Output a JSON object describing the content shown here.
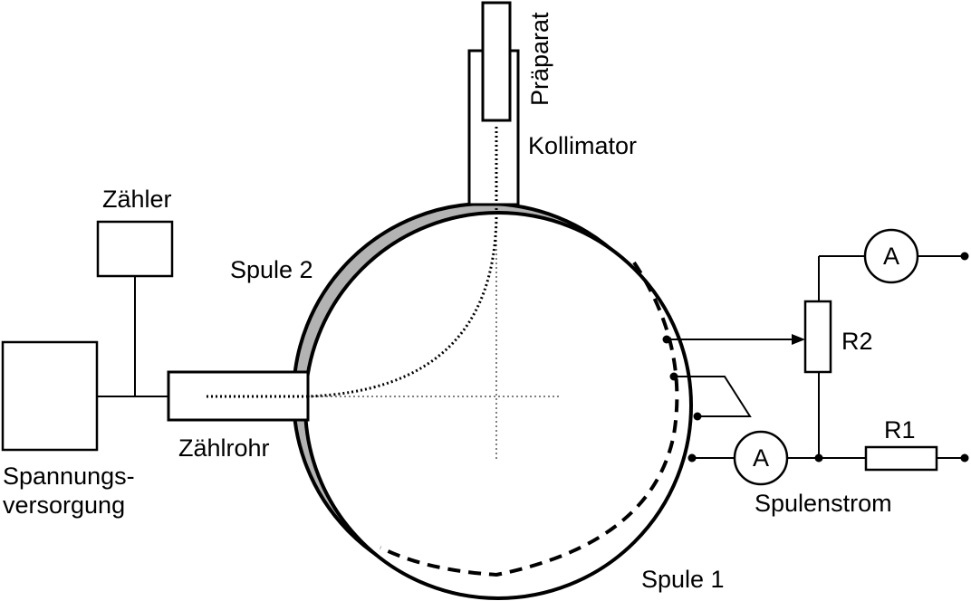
{
  "labels": {
    "praeparat": "Präparat",
    "kollimator": "Kollimator",
    "zaehler": "Zähler",
    "spule2": "Spule 2",
    "spannungsversorgung_line1": "Spannungs-",
    "spannungsversorgung_line2": "versorgung",
    "zaehlrohr": "Zählrohr",
    "r2": "R2",
    "r1": "R1",
    "ammeter_top": "A",
    "ammeter_bottom": "A",
    "spulenstrom": "Spulenstrom",
    "spule1": "Spule 1"
  },
  "colors": {
    "stroke": "#000000",
    "coil2_fill": "#b3b3b3",
    "background": "#ffffff"
  }
}
